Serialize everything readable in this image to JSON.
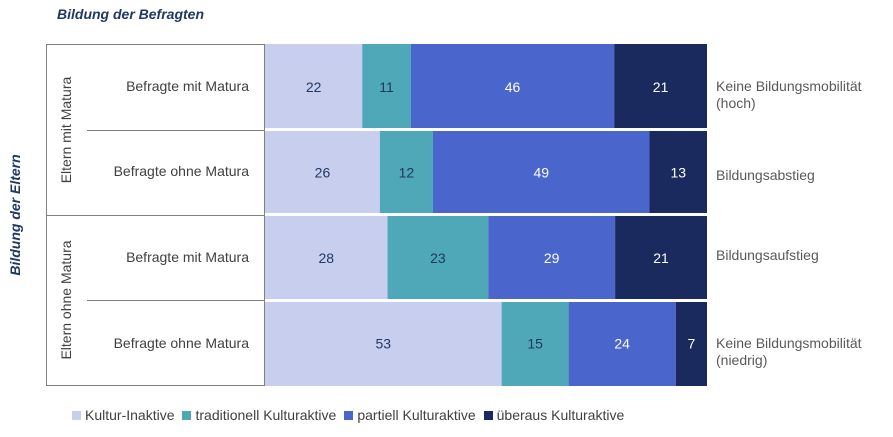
{
  "title_top": "Bildung der Befragten",
  "title_side": "Bildung der Eltern",
  "groups": [
    {
      "label": "Eltern mit Matura"
    },
    {
      "label": "Eltern ohne Matura"
    }
  ],
  "rows": [
    {
      "label": "Befragte mit Matura",
      "right_label": [
        "Keine Bildungsmobilität",
        "(hoch)"
      ]
    },
    {
      "label": "Befragte ohne Matura",
      "right_label": [
        "Bildungsabstieg"
      ]
    },
    {
      "label": "Befragte mit Matura",
      "right_label": [
        "Bildungsaufstieg"
      ]
    },
    {
      "label": "Befragte ohne Matura",
      "right_label": [
        "Keine Bildungsmobilität",
        "(niedrig)"
      ]
    }
  ],
  "colors": {
    "kultur_inaktive": "#c8cfee",
    "traditionell": "#4ea8b8",
    "partiell": "#4a66cc",
    "ueberaus": "#1a2a5e",
    "title": "#1f3864"
  },
  "chart_data": {
    "type": "bar",
    "orientation": "horizontal",
    "stacked": true,
    "categories": [
      "Eltern mit Matura / Befragte mit Matura",
      "Eltern mit Matura / Befragte ohne Matura",
      "Eltern ohne Matura / Befragte mit Matura",
      "Eltern ohne Matura / Befragte ohne Matura"
    ],
    "series": [
      {
        "name": "Kultur-Inaktive",
        "values": [
          22,
          26,
          28,
          53
        ]
      },
      {
        "name": "traditionell Kulturaktive",
        "values": [
          11,
          12,
          23,
          15
        ]
      },
      {
        "name": "partiell Kulturaktive",
        "values": [
          46,
          49,
          29,
          24
        ]
      },
      {
        "name": "überaus Kulturaktive",
        "values": [
          21,
          13,
          21,
          7
        ]
      }
    ],
    "xlim": [
      0,
      100
    ],
    "title": "Bildung der Befragten",
    "ylabel": "Bildung der Eltern",
    "legend_position": "bottom",
    "data_labels": true
  }
}
